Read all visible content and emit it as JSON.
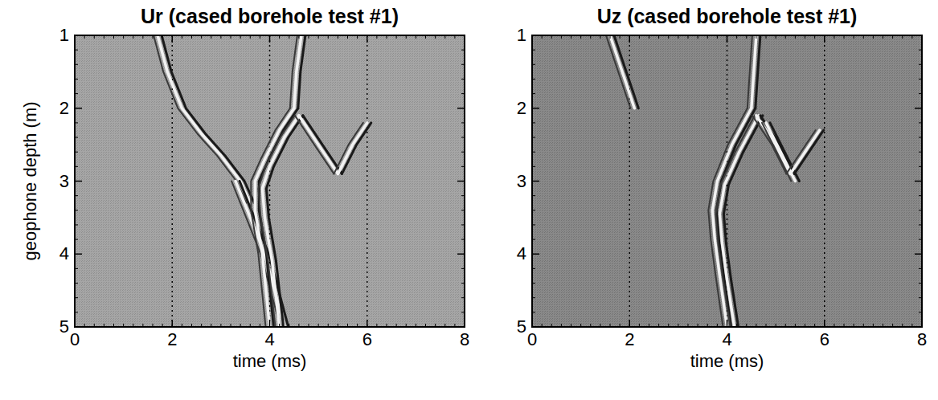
{
  "chart_data": [
    {
      "type": "line",
      "title": "Ur (cased borehole test #1)",
      "x_label": "time (ms)",
      "y_label": "geophone depth (m)",
      "xlim": [
        0,
        8
      ],
      "xticks": [
        0,
        2,
        4,
        6,
        8
      ],
      "ylim": [
        5,
        1
      ],
      "yticks": [
        1,
        2,
        3,
        4,
        5
      ],
      "grid": true,
      "series": [
        {
          "color": "#f2f2f2",
          "x": [
            1.7,
            1.9,
            2.2,
            2.6,
            3.0,
            3.4,
            3.6
          ],
          "values": [
            1.0,
            1.5,
            2.0,
            2.35,
            2.65,
            3.0,
            3.3
          ]
        },
        {
          "color": "#f2f2f2",
          "x": [
            3.3,
            3.6,
            3.9,
            4.1,
            4.3
          ],
          "values": [
            3.0,
            3.5,
            4.0,
            4.5,
            5.0
          ]
        },
        {
          "color": "#f2f2f2",
          "x": [
            4.5,
            4.2,
            3.9,
            3.7,
            3.7,
            3.85,
            4.0
          ],
          "values": [
            2.0,
            2.3,
            2.7,
            3.0,
            3.4,
            4.0,
            5.0
          ]
        },
        {
          "color": "#f2f2f2",
          "x": [
            4.6,
            4.3,
            4.0,
            3.85,
            3.9,
            4.05,
            4.2
          ],
          "values": [
            2.1,
            2.4,
            2.8,
            3.1,
            3.5,
            4.1,
            5.0
          ]
        },
        {
          "color": "#f2f2f2",
          "x": [
            4.5,
            4.55,
            4.65
          ],
          "values": [
            2.0,
            1.5,
            1.0
          ]
        },
        {
          "color": "#f2f2f2",
          "x": [
            4.6,
            5.0,
            5.4
          ],
          "values": [
            2.1,
            2.5,
            2.9
          ]
        },
        {
          "color": "#f2f2f2",
          "x": [
            6.0,
            5.7,
            5.4
          ],
          "values": [
            2.2,
            2.5,
            2.9
          ]
        }
      ]
    },
    {
      "type": "line",
      "title": "Uz (cased borehole test #1)",
      "x_label": "time (ms)",
      "xlim": [
        0,
        8
      ],
      "xticks": [
        0,
        2,
        4,
        6,
        8
      ],
      "ylim": [
        5,
        1
      ],
      "yticks": [
        1,
        2,
        3,
        4,
        5
      ],
      "grid": true,
      "series": [
        {
          "color": "#f2f2f2",
          "x": [
            1.6,
            1.8,
            2.0,
            2.1
          ],
          "values": [
            1.0,
            1.4,
            1.8,
            2.0
          ]
        },
        {
          "color": "#f2f2f2",
          "x": [
            4.5,
            4.1,
            3.8,
            3.7,
            3.75,
            3.85,
            4.0
          ],
          "values": [
            2.0,
            2.5,
            3.0,
            3.4,
            3.8,
            4.3,
            5.0
          ]
        },
        {
          "color": "#f2f2f2",
          "x": [
            4.65,
            4.25,
            3.95,
            3.85,
            3.9,
            4.0,
            4.15
          ],
          "values": [
            2.1,
            2.6,
            3.05,
            3.45,
            3.85,
            4.35,
            5.0
          ]
        },
        {
          "color": "#f2f2f2",
          "x": [
            4.5,
            4.55,
            4.6
          ],
          "values": [
            2.0,
            1.5,
            1.0
          ]
        },
        {
          "color": "#f2f2f2",
          "x": [
            4.6,
            5.0,
            5.3
          ],
          "values": [
            2.1,
            2.5,
            2.9
          ]
        },
        {
          "color": "#f2f2f2",
          "x": [
            4.8,
            5.1,
            5.4
          ],
          "values": [
            2.2,
            2.6,
            3.0
          ]
        },
        {
          "color": "#f2f2f2",
          "x": [
            5.9,
            5.6,
            5.3
          ],
          "values": [
            2.3,
            2.6,
            2.9
          ]
        }
      ]
    }
  ]
}
